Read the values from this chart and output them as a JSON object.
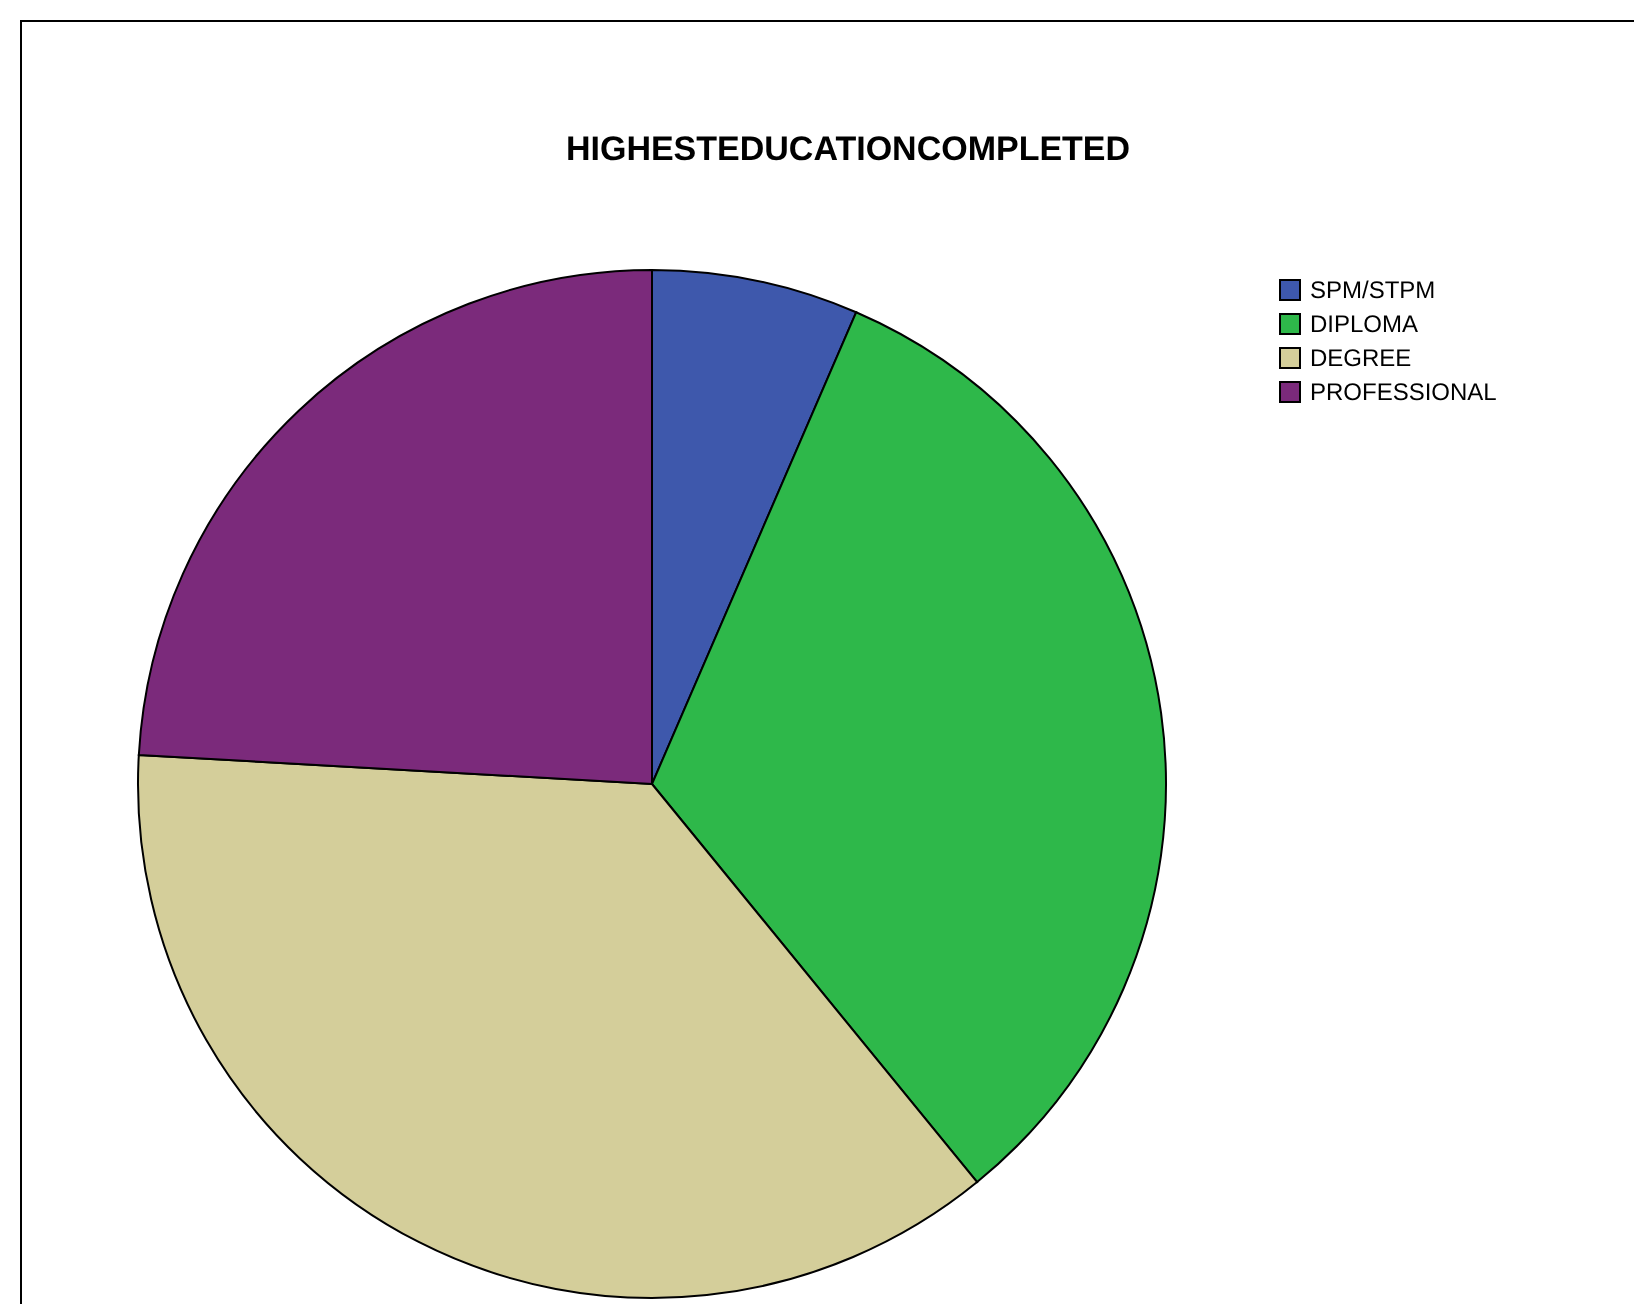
{
  "chart_data": {
    "type": "pie",
    "title": "HIGHESTEDUCATIONCOMPLETED",
    "categories": [
      "SPM/STPM",
      "DIPLOMA",
      "DEGREE",
      "PROFESSIONAL"
    ],
    "values": [
      6.5,
      32.6,
      36.8,
      24.1
    ],
    "colors": [
      "#3e58ac",
      "#2eb84a",
      "#d4ce9a",
      "#7b2a7b"
    ],
    "legend": "top right"
  }
}
